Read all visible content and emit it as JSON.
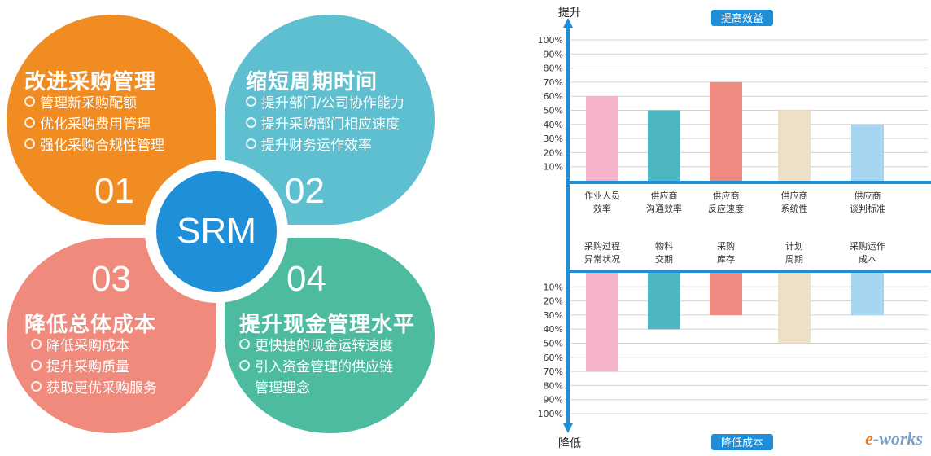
{
  "center": {
    "label": "SRM"
  },
  "petals": [
    {
      "num": "01",
      "title": "改进采购管理",
      "color": "#f08c22",
      "items": [
        "管理新采购配额",
        "优化采购费用管理",
        "强化采购合规性管理"
      ]
    },
    {
      "num": "02",
      "title": "缩短周期时间",
      "color": "#5dbfcf",
      "items": [
        "提升部门/公司协作能力",
        "提升采购部门相应速度",
        "提升财务运作效率"
      ]
    },
    {
      "num": "03",
      "title": "降低总体成本",
      "color": "#ef8a7c",
      "items": [
        "降低采购成本",
        "提升采购质量",
        "获取更优采购服务"
      ]
    },
    {
      "num": "04",
      "title": "提升现金管理水平",
      "color": "#4dbba0",
      "items": [
        "更快捷的现金运转速度",
        "引入资金管理的供应链",
        "管理理念"
      ]
    }
  ],
  "chart_data": [
    {
      "type": "bar",
      "title": "提高效益",
      "ylabel": "提升",
      "ylim": [
        0,
        100
      ],
      "yticks": [
        "10%",
        "20%",
        "30%",
        "40%",
        "50%",
        "60%",
        "70%",
        "80%",
        "90%",
        "100%"
      ],
      "categories": [
        [
          "作业人员",
          "效率"
        ],
        [
          "供应商",
          "沟通效率"
        ],
        [
          "供应商",
          "反应速度"
        ],
        [
          "供应商",
          "系统性"
        ],
        [
          "供应商",
          "谈判标准"
        ]
      ],
      "values": [
        60,
        50,
        70,
        50,
        40
      ],
      "colors": [
        "#f4b3c6",
        "#4cb6c1",
        "#ee8a80",
        "#efe0c8",
        "#a6d5f1"
      ]
    },
    {
      "type": "bar",
      "title": "降低成本",
      "ylabel": "降低",
      "ylim": [
        0,
        100
      ],
      "yticks": [
        "10%",
        "20%",
        "30%",
        "40%",
        "50%",
        "60%",
        "70%",
        "80%",
        "90%",
        "100%"
      ],
      "categories": [
        [
          "采购过程",
          "异常状况"
        ],
        [
          "物料",
          "交期"
        ],
        [
          "采购",
          "库存"
        ],
        [
          "计划",
          "周期"
        ],
        [
          "采购运作",
          "成本"
        ]
      ],
      "values": [
        70,
        40,
        30,
        50,
        30
      ],
      "colors": [
        "#f4b3c6",
        "#4cb6c1",
        "#ee8a80",
        "#efe0c8",
        "#a6d5f1"
      ]
    }
  ],
  "watermark": {
    "e": "e",
    "rest": "-works"
  }
}
